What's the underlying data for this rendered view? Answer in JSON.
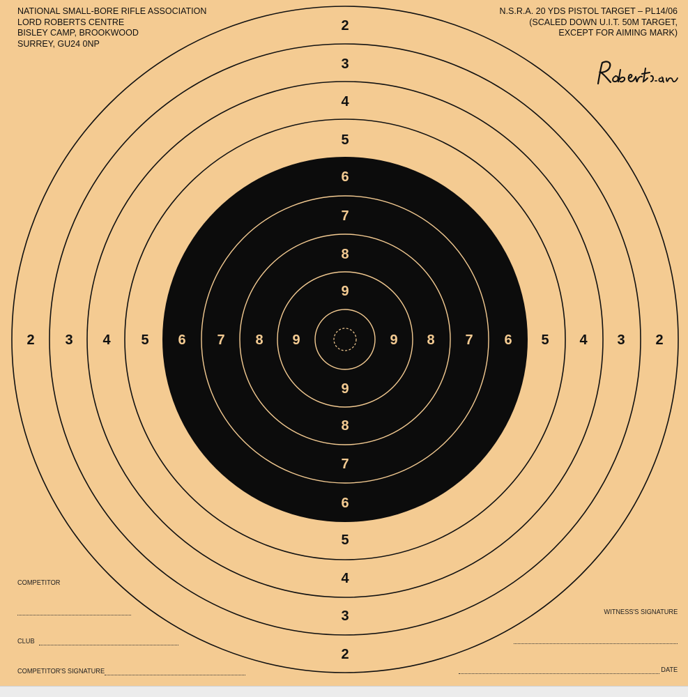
{
  "header_left": [
    "NATIONAL SMALL-BORE RIFLE ASSOCIATION",
    "LORD ROBERTS CENTRE",
    "BISLEY CAMP, BROOKWOOD",
    "SURREY, GU24 0NP"
  ],
  "header_right": [
    "N.S.R.A. 20 YDS PISTOL TARGET – PL14/06",
    "(SCALED DOWN U.I.T. 50M TARGET,",
    "EXCEPT FOR AIMING MARK)"
  ],
  "signature_text": "Roberts.9a",
  "target": {
    "ring_values": [
      2,
      3,
      4,
      5,
      6,
      7,
      8,
      9
    ],
    "outer_labels": {
      "2": "2",
      "3": "3",
      "4": "4",
      "5": "5"
    },
    "inner_labels": {
      "6": "6",
      "7": "7",
      "8": "8",
      "9": "9"
    },
    "colors": {
      "card": "#f4cb92",
      "ink": "#111111",
      "aiming_mark": "#0c0c0c",
      "inner_ring_lines": "#f4cb92"
    }
  },
  "form": {
    "competitor": "COMPETITOR",
    "club": "CLUB",
    "competitor_signature": "COMPETITOR'S SIGNATURE",
    "witness_signature": "WITNESS'S SIGNATURE",
    "date": "DATE"
  }
}
